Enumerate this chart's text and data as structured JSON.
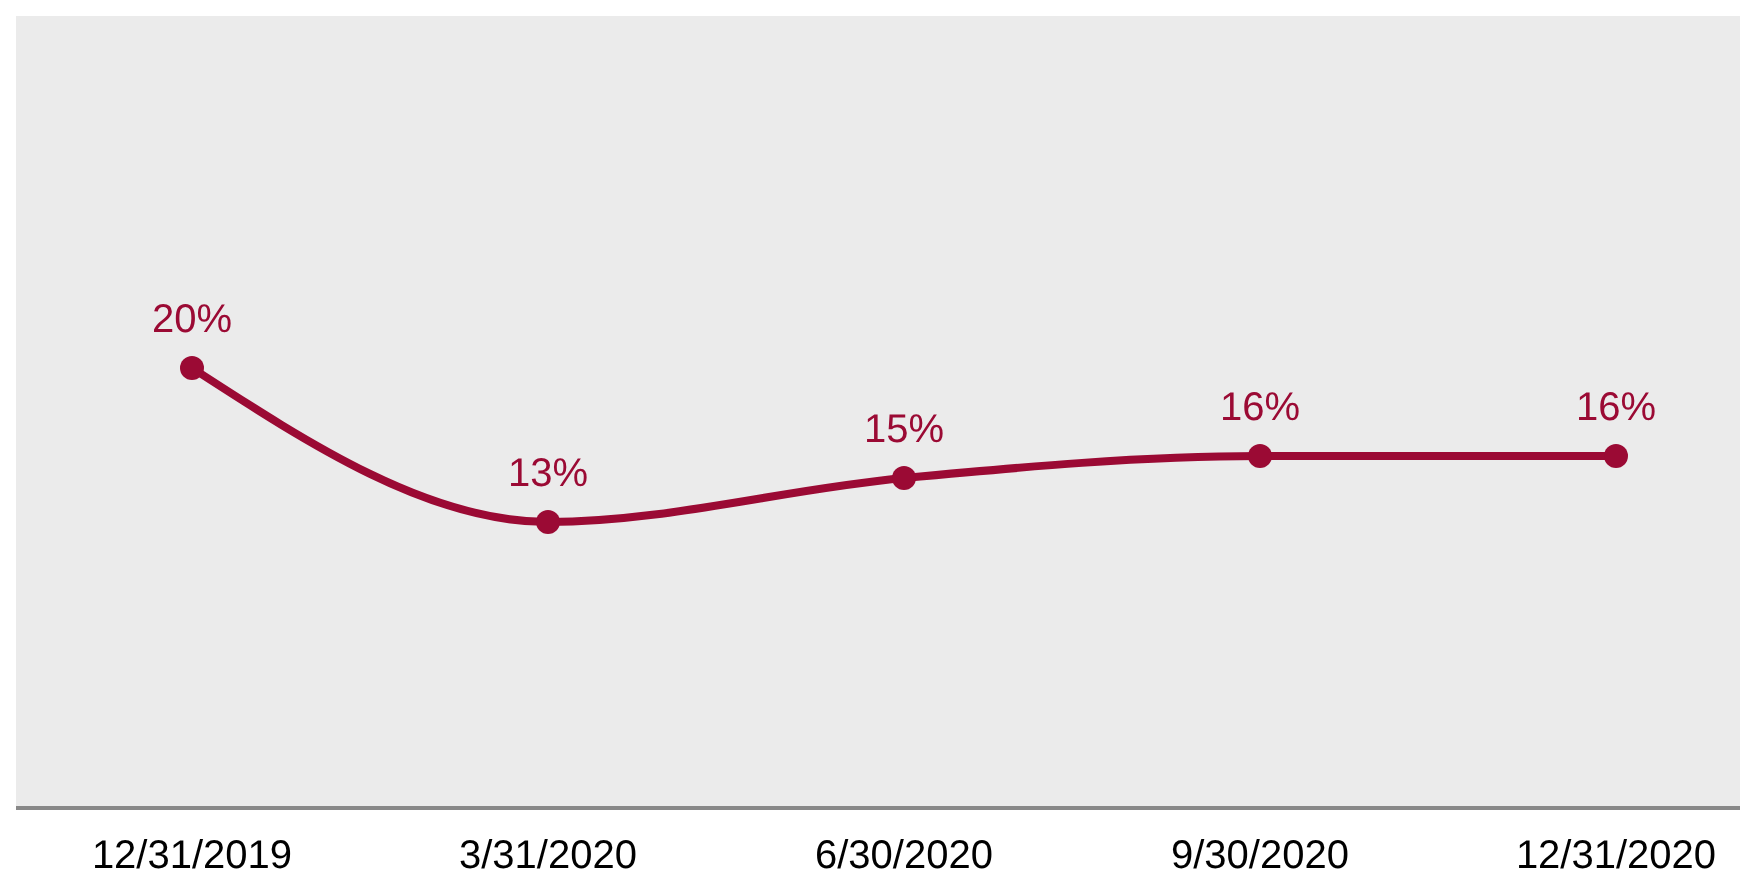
{
  "chart_data": {
    "type": "line",
    "categories": [
      "12/31/2019",
      "3/31/2020",
      "6/30/2020",
      "9/30/2020",
      "12/31/2020"
    ],
    "series": [
      {
        "color": "#9b0a34",
        "values": [
          20,
          13,
          15,
          16,
          16
        ],
        "value_labels": [
          "20%",
          "13%",
          "15%",
          "16%",
          "16%"
        ]
      }
    ],
    "marker": "circle",
    "line_style": "solid",
    "legend": false,
    "grid": false,
    "tick_labels": "x"
  }
}
